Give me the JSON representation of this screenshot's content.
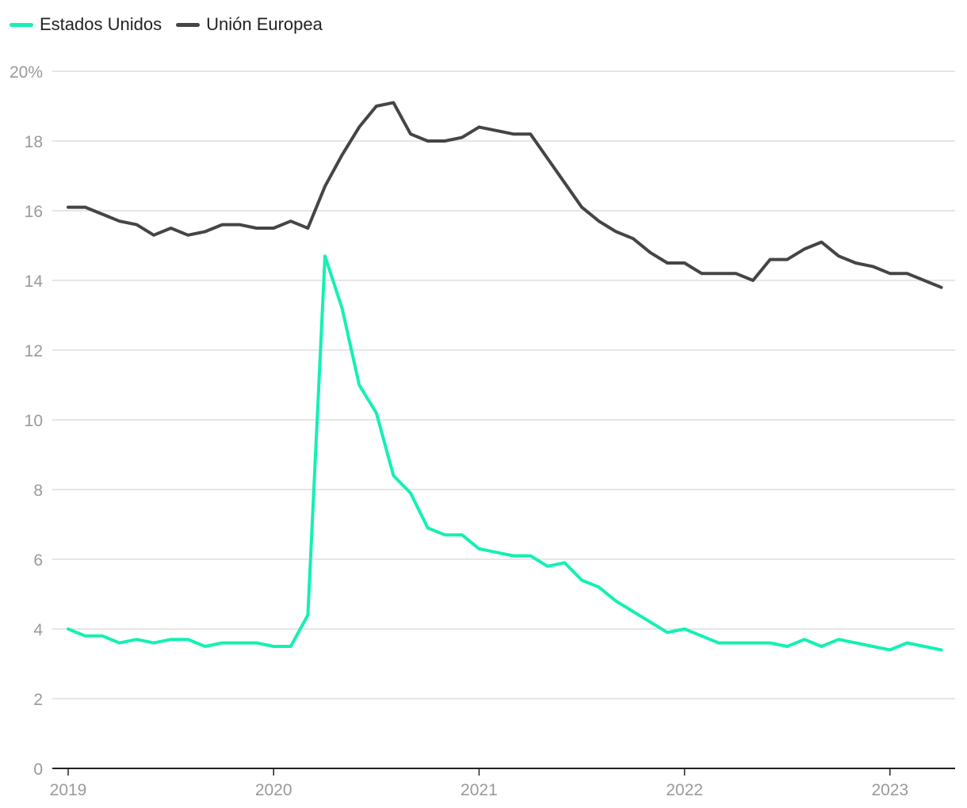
{
  "chart_data": {
    "type": "line",
    "ylim": [
      0,
      20
    ],
    "yticks": [
      0,
      2,
      4,
      6,
      8,
      10,
      12,
      14,
      16,
      18,
      20
    ],
    "ytick_labels": [
      "0",
      "2",
      "4",
      "6",
      "8",
      "10",
      "12",
      "14",
      "16",
      "18",
      "20%"
    ],
    "xticks": [
      "2019",
      "2020",
      "2021",
      "2022",
      "2023"
    ],
    "x_start": "2019-01",
    "legend": {
      "placement": "top-left"
    },
    "grid": true,
    "colors": {
      "Estados Unidos": "#14f0b4",
      "Unión Europea": "#454545"
    },
    "series": [
      {
        "name": "Estados Unidos",
        "values": [
          4.0,
          3.8,
          3.8,
          3.6,
          3.7,
          3.6,
          3.7,
          3.7,
          3.5,
          3.6,
          3.6,
          3.6,
          3.5,
          3.5,
          4.4,
          14.7,
          13.2,
          11.0,
          10.2,
          8.4,
          7.9,
          6.9,
          6.7,
          6.7,
          6.3,
          6.2,
          6.1,
          6.1,
          5.8,
          5.9,
          5.4,
          5.2,
          4.8,
          4.5,
          4.2,
          3.9,
          4.0,
          3.8,
          3.6,
          3.6,
          3.6,
          3.6,
          3.5,
          3.7,
          3.5,
          3.7,
          3.6,
          3.5,
          3.4,
          3.6,
          3.5,
          3.4
        ]
      },
      {
        "name": "Unión Europea",
        "values": [
          16.1,
          16.1,
          15.9,
          15.7,
          15.6,
          15.3,
          15.5,
          15.3,
          15.4,
          15.6,
          15.6,
          15.5,
          15.5,
          15.7,
          15.5,
          16.7,
          17.6,
          18.4,
          19.0,
          19.1,
          18.2,
          18.0,
          18.0,
          18.1,
          18.4,
          18.3,
          18.2,
          18.2,
          17.5,
          16.8,
          16.1,
          15.7,
          15.4,
          15.2,
          14.8,
          14.5,
          14.5,
          14.2,
          14.2,
          14.2,
          14.0,
          14.6,
          14.6,
          14.9,
          15.1,
          14.7,
          14.5,
          14.4,
          14.2,
          14.2,
          14.0,
          13.8
        ]
      }
    ]
  }
}
